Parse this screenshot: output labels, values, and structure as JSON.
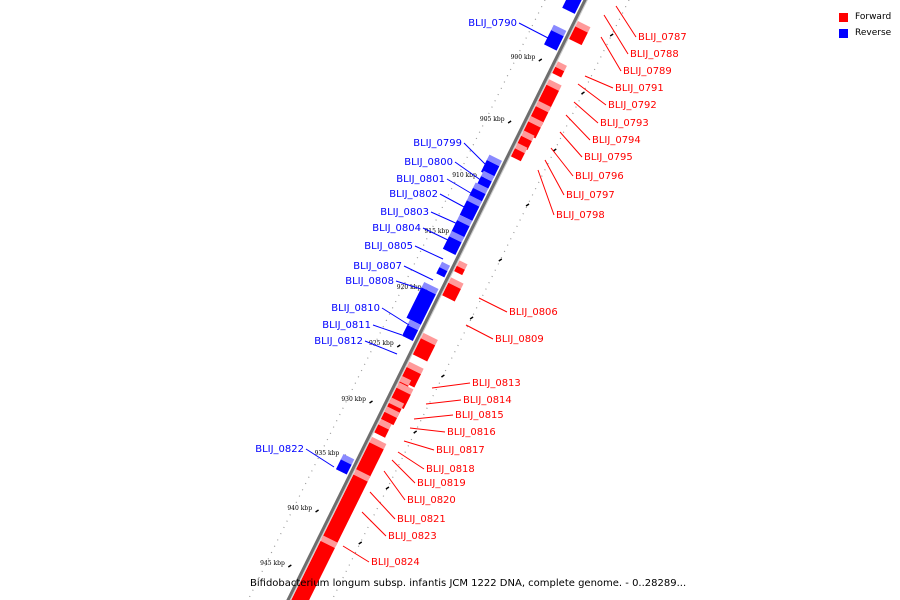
{
  "legend": {
    "forward_label": "Forward",
    "reverse_label": "Reverse",
    "forward_color": "#ff0000",
    "reverse_color": "#0000ff"
  },
  "caption": "Bifidobacterium longum subsp. infantis JCM 1222 DNA, complete genome. - 0..28289...",
  "scale_ticks": [
    "900 kbp",
    "905 kbp",
    "910 kbp",
    "915 kbp",
    "920 kbp",
    "925 kbp",
    "930 kbp",
    "935 kbp",
    "940 kbp",
    "945 kbp"
  ],
  "forward_genes": [
    "BLIJ_0787",
    "BLIJ_0788",
    "BLIJ_0789",
    "BLIJ_0791",
    "BLIJ_0792",
    "BLIJ_0793",
    "BLIJ_0794",
    "BLIJ_0795",
    "BLIJ_0796",
    "BLIJ_0797",
    "BLIJ_0798",
    "BLIJ_0806",
    "BLIJ_0809",
    "BLIJ_0813",
    "BLIJ_0814",
    "BLIJ_0815",
    "BLIJ_0816",
    "BLIJ_0817",
    "BLIJ_0818",
    "BLIJ_0819",
    "BLIJ_0820",
    "BLIJ_0821",
    "BLIJ_0823",
    "BLIJ_0824"
  ],
  "reverse_genes": [
    "BLIJ_0790",
    "BLIJ_0799",
    "BLIJ_0800",
    "BLIJ_0801",
    "BLIJ_0802",
    "BLIJ_0803",
    "BLIJ_0804",
    "BLIJ_0805",
    "BLIJ_0807",
    "BLIJ_0808",
    "BLIJ_0810",
    "BLIJ_0811",
    "BLIJ_0812",
    "BLIJ_0822"
  ]
}
